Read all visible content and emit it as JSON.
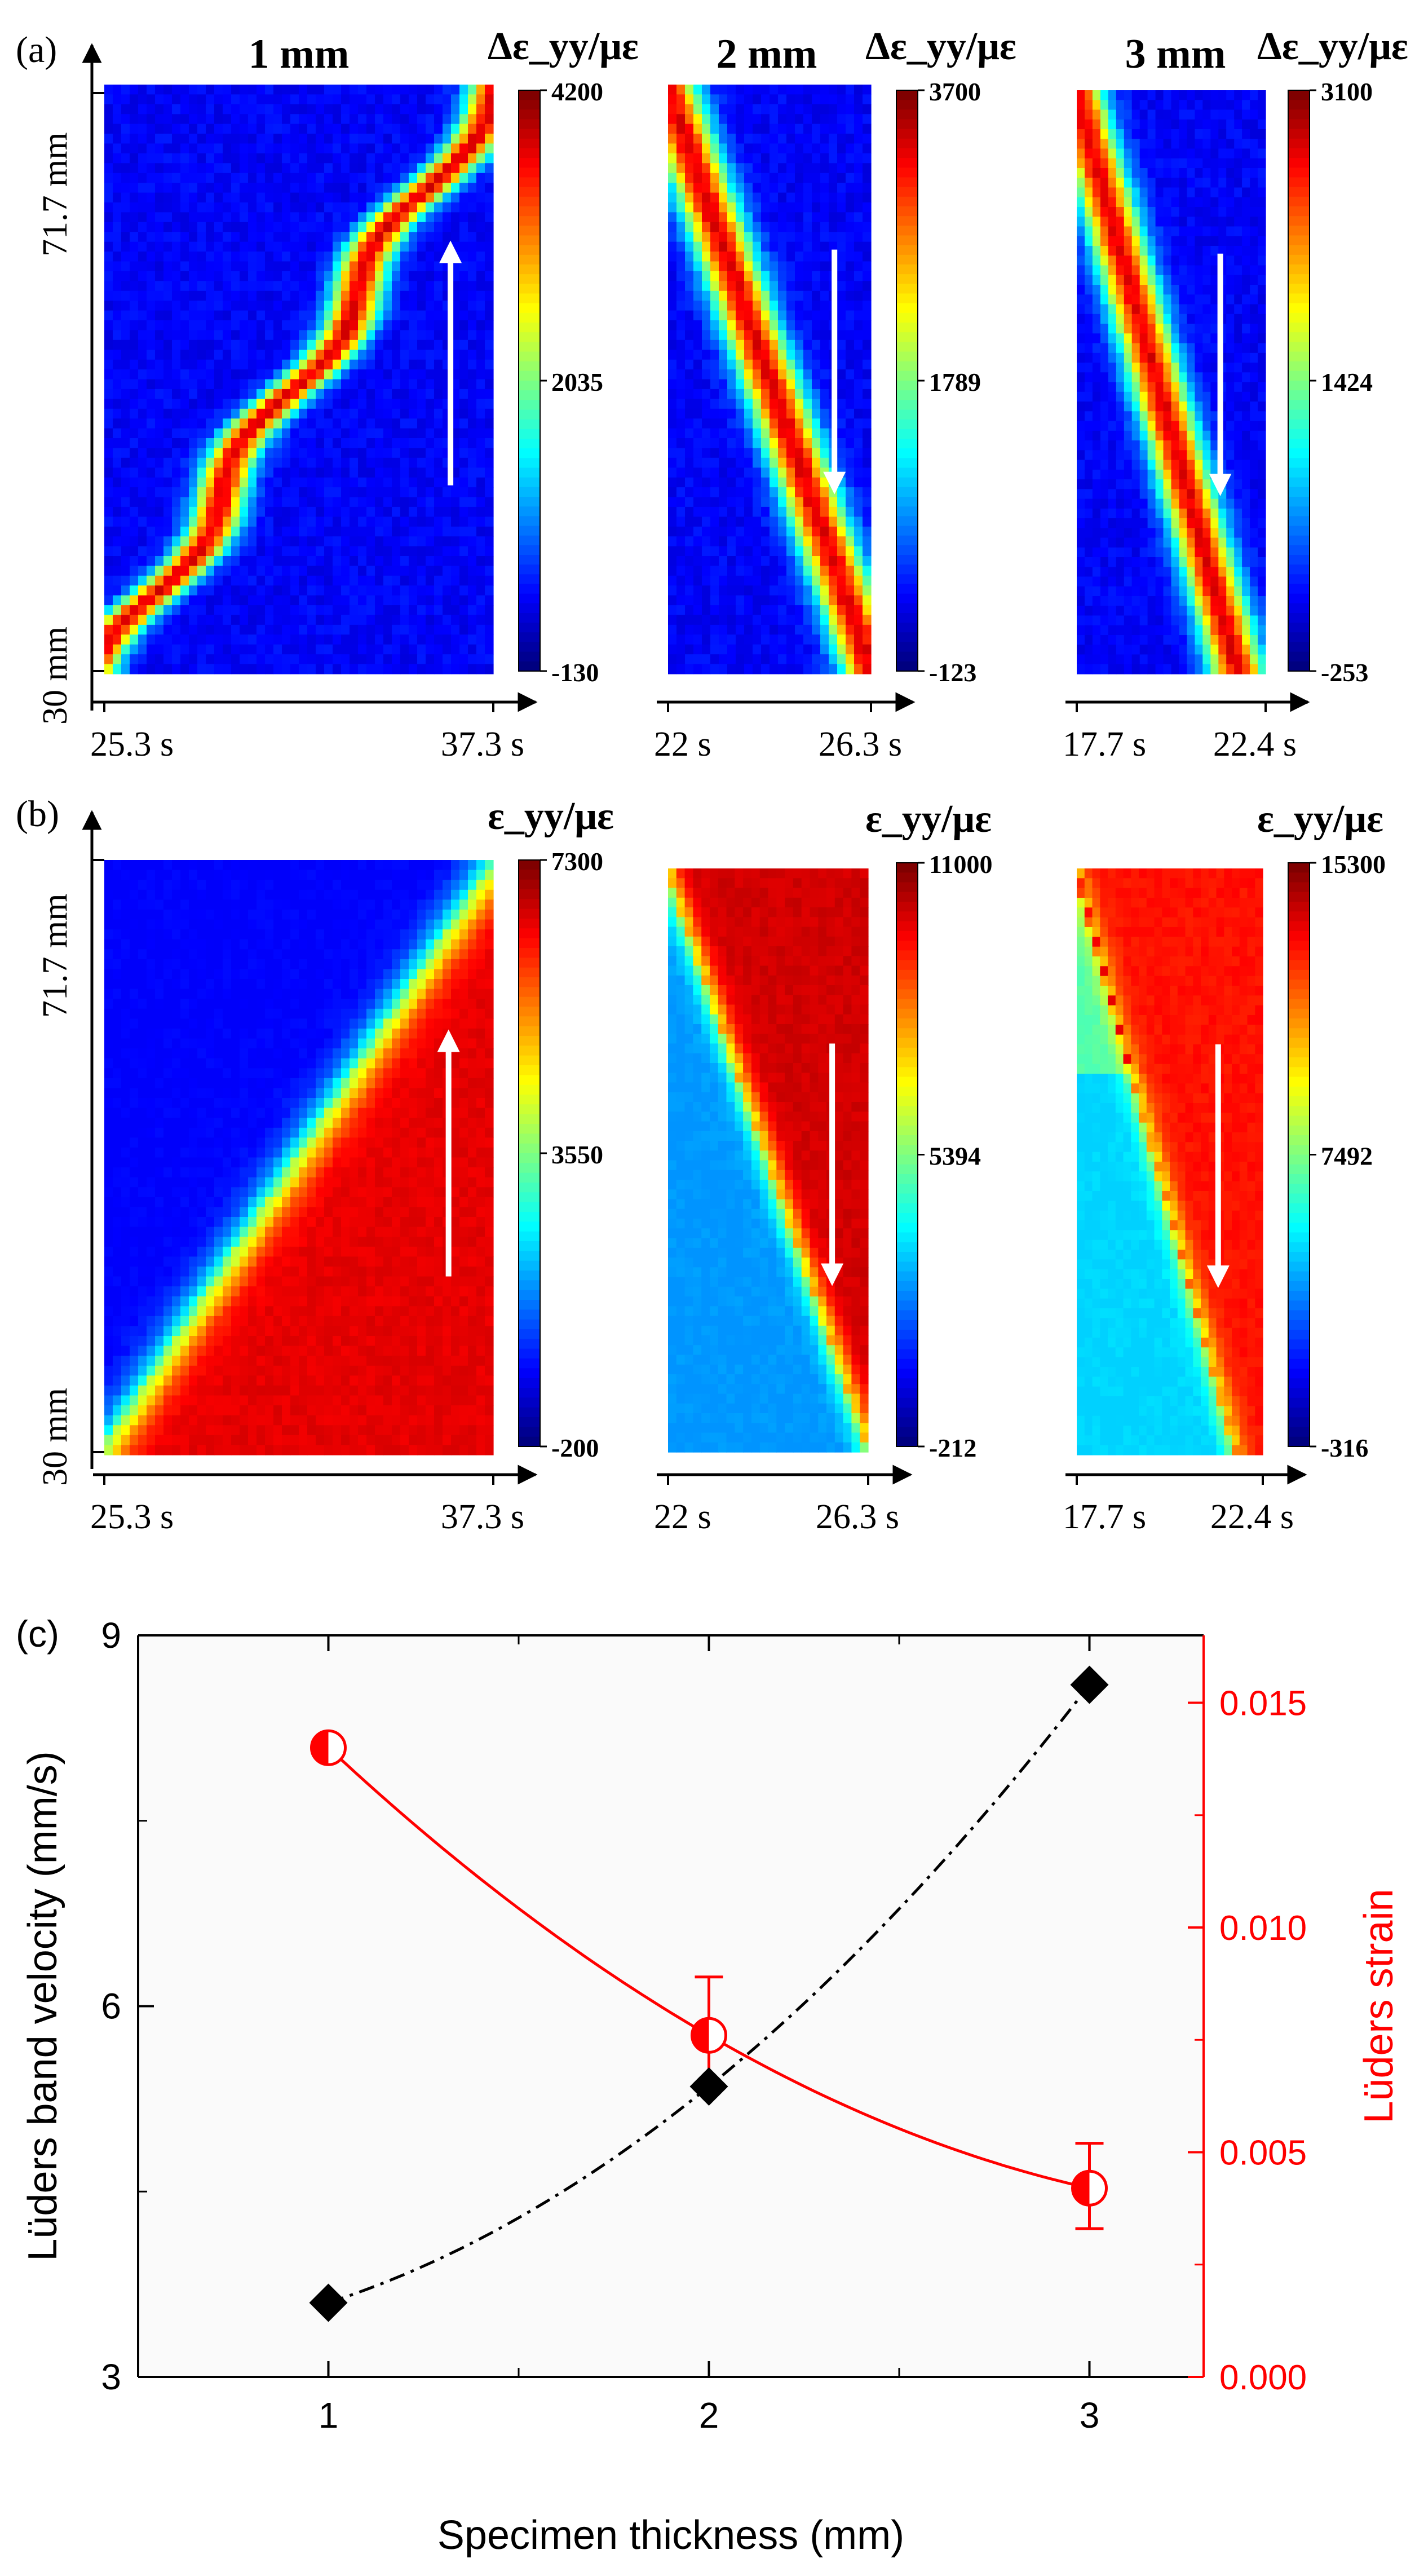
{
  "panel_labels": {
    "a": "(a)",
    "b": "(b)",
    "c": "(c)"
  },
  "y_tick_labels": {
    "top": "71.7 mm",
    "bottom": "30 mm"
  },
  "colors": {
    "jet": [
      "#00008f",
      "#0000ff",
      "#00ffff",
      "#7fff7f",
      "#ffff00",
      "#ff7f00",
      "#ff0000",
      "#800000"
    ],
    "red_series": "#ff0000",
    "black_series": "#000000",
    "arrow": "#ffffff"
  },
  "chart_data": [
    {
      "id": "a1",
      "type": "heatmap",
      "title": "1 mm",
      "colorbar_label": "Δε_yy/με",
      "colorbar_ticks": [
        "4200",
        "2035",
        "-130"
      ],
      "clim": [
        -130,
        4200
      ],
      "x_tick_labels": [
        "25.3 s",
        "37.3 s"
      ],
      "band_direction": "upward",
      "arrow": "up"
    },
    {
      "id": "a2",
      "type": "heatmap",
      "title": "2 mm",
      "colorbar_label": "Δε_yy/με",
      "colorbar_ticks": [
        "3700",
        "1789",
        "-123"
      ],
      "clim": [
        -123,
        3700
      ],
      "x_tick_labels": [
        "22 s",
        "26.3 s"
      ],
      "band_direction": "downward",
      "arrow": "down"
    },
    {
      "id": "a3",
      "type": "heatmap",
      "title": "3 mm",
      "colorbar_label": "Δε_yy/με",
      "colorbar_ticks": [
        "3100",
        "1424",
        "-253"
      ],
      "clim": [
        -253,
        3100
      ],
      "x_tick_labels": [
        "17.7 s",
        "22.4 s"
      ],
      "band_direction": "downward",
      "arrow": "down"
    },
    {
      "id": "b1",
      "type": "heatmap",
      "colorbar_label": "ε_yy/με",
      "colorbar_ticks": [
        "7300",
        "3550",
        "-200"
      ],
      "clim": [
        -200,
        7300
      ],
      "x_tick_labels": [
        "25.3 s",
        "37.3 s"
      ],
      "band_direction": "upward",
      "arrow": "up"
    },
    {
      "id": "b2",
      "type": "heatmap",
      "colorbar_label": "ε_yy/με",
      "colorbar_ticks": [
        "11000",
        "5394",
        "-212"
      ],
      "clim": [
        -212,
        11000
      ],
      "x_tick_labels": [
        "22 s",
        "26.3 s"
      ],
      "band_direction": "downward",
      "arrow": "down"
    },
    {
      "id": "b3",
      "type": "heatmap",
      "colorbar_label": "ε_yy/με",
      "colorbar_ticks": [
        "15300",
        "7492",
        "-316"
      ],
      "clim": [
        -316,
        15300
      ],
      "x_tick_labels": [
        "17.7 s",
        "22.4 s"
      ],
      "band_direction": "downward",
      "arrow": "down"
    },
    {
      "id": "c",
      "type": "scatter",
      "xlabel": "Specimen thickness (mm)",
      "ylabel": "Lüders band velocity (mm/s)",
      "ylabel_right": "Lüders strain",
      "x": [
        1,
        2,
        3
      ],
      "xlim": [
        0.5,
        3.3
      ],
      "ylim": [
        3,
        9
      ],
      "ylim_right": [
        0.0,
        0.0165
      ],
      "x_ticks": [
        "1",
        "2",
        "3"
      ],
      "y_ticks": [
        "3",
        "6",
        "9"
      ],
      "y_ticks_right": [
        "0.000",
        "0.005",
        "0.010",
        "0.015"
      ],
      "series": [
        {
          "axis": "left",
          "marker": "diamond",
          "color": "#000000",
          "line": "dash-dot",
          "values": [
            3.6,
            5.35,
            8.6
          ]
        },
        {
          "axis": "right",
          "marker": "half-filled circle",
          "color": "#ff0000",
          "line": "solid",
          "values": [
            0.014,
            0.0076,
            0.0042
          ],
          "error_low": [
            0.014,
            0.0064,
            0.0033
          ],
          "error_high": [
            0.014,
            0.0089,
            0.0052
          ]
        }
      ]
    }
  ]
}
